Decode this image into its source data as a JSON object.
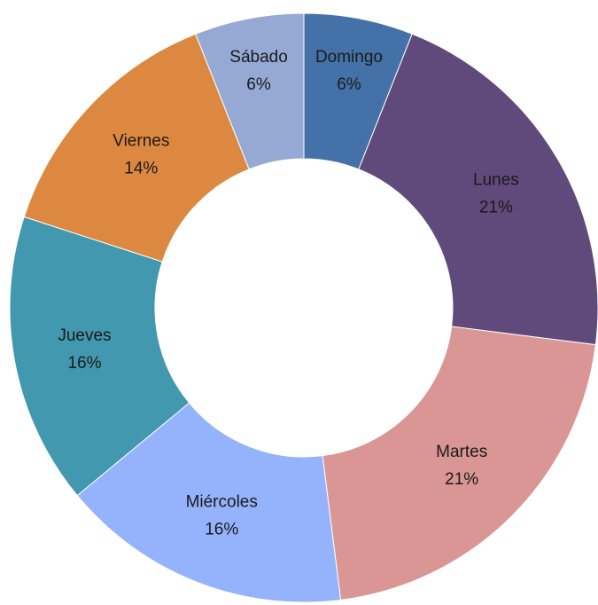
{
  "chart_data": {
    "type": "donut",
    "categories": [
      "Domingo",
      "Lunes",
      "Martes",
      "Miércoles",
      "Jueves",
      "Viernes",
      "Sábado"
    ],
    "values": [
      6,
      21,
      21,
      16,
      16,
      14,
      6
    ],
    "value_labels": [
      "6%",
      "21%",
      "21%",
      "16%",
      "16%",
      "14%",
      "6%"
    ],
    "colors": [
      "#4472a8",
      "#604a7b",
      "#d99694",
      "#95b3fc",
      "#4298ae",
      "#dd8840",
      "#95a9d4"
    ]
  }
}
